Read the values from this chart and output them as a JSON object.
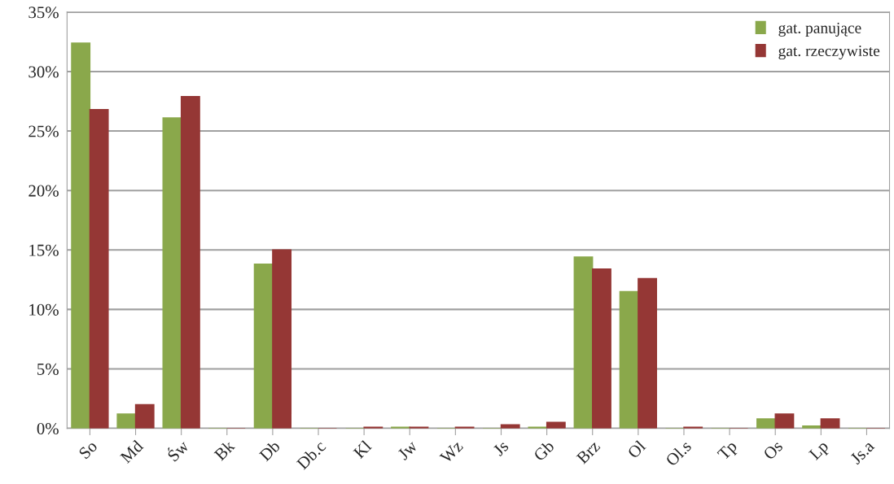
{
  "chart_data": {
    "type": "bar",
    "categories": [
      "So",
      "Md",
      "Św",
      "Bk",
      "Db",
      "Db.c",
      "Kl",
      "Jw",
      "Wz",
      "Js",
      "Gb",
      "Brz",
      "Ol",
      "Ol.s",
      "Tp",
      "Os",
      "Lp",
      "Js.a"
    ],
    "series": [
      {
        "name": "gat. panujące",
        "color": "#8aa84b",
        "values": [
          32.4,
          1.2,
          26.1,
          0,
          13.8,
          0,
          0,
          0.1,
          0,
          0,
          0.1,
          14.4,
          11.5,
          0,
          0,
          0.8,
          0.2,
          0
        ]
      },
      {
        "name": "gat. rzeczywiste",
        "color": "#953735",
        "values": [
          26.8,
          2.0,
          27.9,
          0,
          15.0,
          0,
          0.1,
          0.1,
          0.1,
          0.3,
          0.5,
          13.4,
          12.6,
          0.1,
          0,
          1.2,
          0.8,
          0
        ]
      }
    ],
    "ylim": [
      0,
      35
    ],
    "yticks": [
      {
        "value": 0,
        "label": "0%"
      },
      {
        "value": 5,
        "label": "5%"
      },
      {
        "value": 10,
        "label": "10%"
      },
      {
        "value": 15,
        "label": "15%"
      },
      {
        "value": 20,
        "label": "20%"
      },
      {
        "value": 25,
        "label": "25%"
      },
      {
        "value": 30,
        "label": "30%"
      },
      {
        "value": 35,
        "label": "35%"
      }
    ],
    "grid": "y",
    "legend": "top right"
  }
}
